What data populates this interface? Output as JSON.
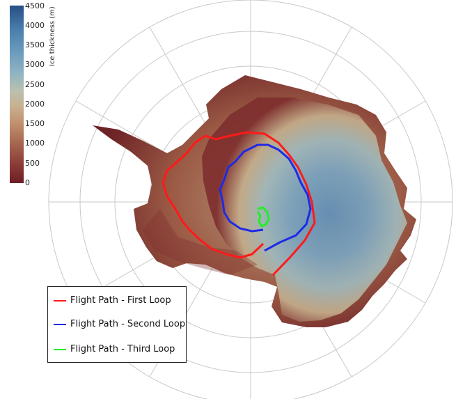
{
  "colorbar": {
    "title": "Ice thickness (m)",
    "ticks": [
      "4500",
      "4000",
      "3500",
      "3000",
      "2500",
      "2000",
      "1500",
      "1000",
      "500",
      "0"
    ]
  },
  "legend": {
    "items": [
      {
        "label": "Flight Path - First Loop",
        "color": "#ff1a1a"
      },
      {
        "label": "Flight Path - Second Loop",
        "color": "#1f2ae6"
      },
      {
        "label": "Flight Path - Third Loop",
        "color": "#22ee22"
      }
    ]
  }
}
